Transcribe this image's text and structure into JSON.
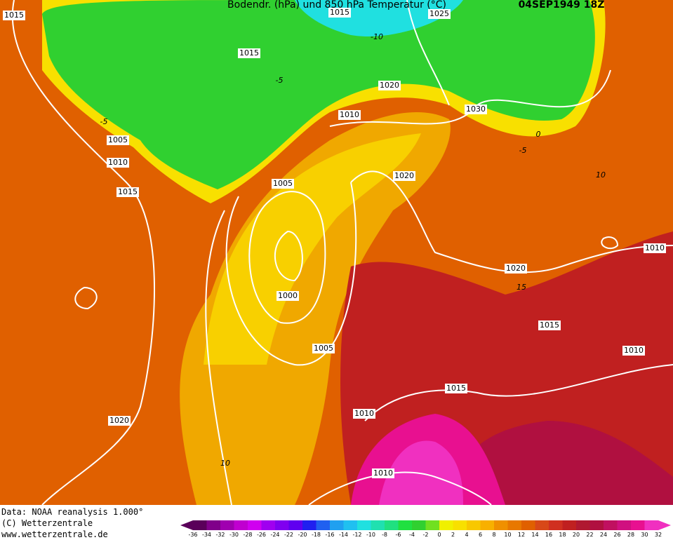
{
  "header": {
    "title": "Bodendr. (hPa) und 850 hPa Temperatur (°C)",
    "date": "04SEP1949 18Z"
  },
  "isobars": [
    1015,
    1015,
    1025,
    1015,
    1020,
    1010,
    1030,
    1005,
    1010,
    1015,
    1005,
    1020,
    1010,
    1020,
    1000,
    1015,
    1005,
    1010,
    1015,
    1010,
    1020,
    1010
  ],
  "temperatures": [
    -10,
    -5,
    -5,
    0,
    -5,
    10,
    15,
    10
  ],
  "footer": {
    "data_note": "Data: NOAA reanalysis 1.000°",
    "copyright": "(C) Wetterzentrale",
    "url": "www.wetterzentrale.de"
  },
  "colorbar": {
    "labels": [
      -36,
      -34,
      -32,
      -30,
      -28,
      -26,
      -24,
      -22,
      -20,
      -18,
      -16,
      -14,
      -12,
      -10,
      -8,
      -6,
      -4,
      -2,
      0,
      2,
      4,
      6,
      8,
      10,
      12,
      14,
      16,
      18,
      20,
      22,
      24,
      26,
      28,
      30,
      32
    ],
    "colors": [
      "#5a005a",
      "#80008a",
      "#a000b0",
      "#c000d0",
      "#d000f0",
      "#a000f0",
      "#8000f0",
      "#6000f0",
      "#2020f0",
      "#2060f0",
      "#20a0f0",
      "#20c0f0",
      "#20e0e0",
      "#20e0b0",
      "#20e080",
      "#20e040",
      "#30d030",
      "#70e020",
      "#f0f000",
      "#f8e000",
      "#f8c800",
      "#f8b000",
      "#f09000",
      "#e87800",
      "#e06000",
      "#d84818",
      "#d03020",
      "#c02020",
      "#b01830",
      "#b01040",
      "#c01060",
      "#d01080",
      "#e81090",
      "#f030c0"
    ]
  }
}
